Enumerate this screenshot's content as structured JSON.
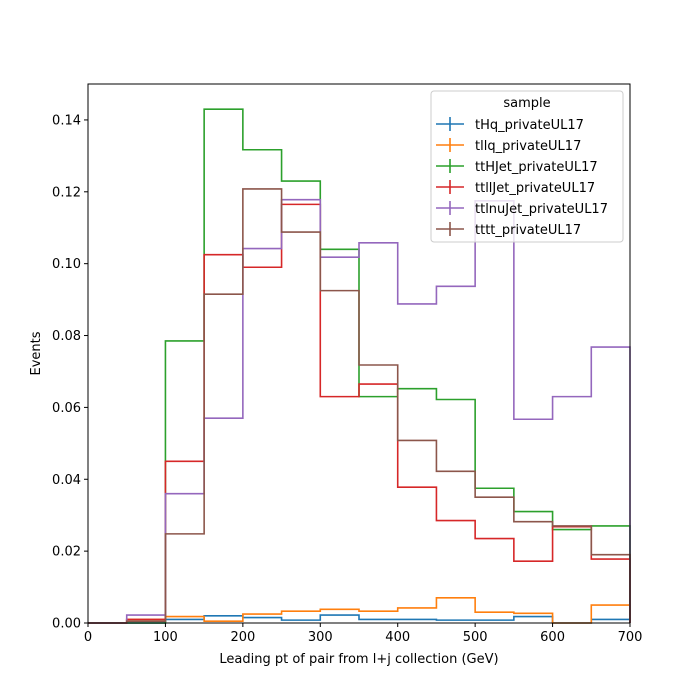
{
  "chart_data": {
    "type": "histogram-step",
    "xlabel": "Leading pt of pair from l+j collection (GeV)",
    "ylabel": "Events",
    "xlim": [
      0,
      700
    ],
    "ylim": [
      0,
      0.15
    ],
    "x_ticks": [
      "0",
      "100",
      "200",
      "300",
      "400",
      "500",
      "600",
      "700"
    ],
    "y_ticks": [
      "0.00",
      "0.02",
      "0.04",
      "0.06",
      "0.08",
      "0.10",
      "0.12",
      "0.14"
    ],
    "bin_edges": [
      0,
      50,
      100,
      150,
      200,
      250,
      300,
      350,
      400,
      450,
      500,
      550,
      600,
      650,
      700
    ],
    "grid": false,
    "legend": {
      "title": "sample",
      "placement": "top-right"
    },
    "series": [
      {
        "name": "tHq_privateUL17",
        "color": "#1f77b4",
        "values": [
          0.0,
          0.0,
          0.001,
          0.002,
          0.0015,
          0.0008,
          0.0022,
          0.001,
          0.001,
          0.0008,
          0.0008,
          0.0018,
          0.0,
          0.001
        ]
      },
      {
        "name": "tllq_privateUL17",
        "color": "#ff7f0e",
        "values": [
          0.0,
          0.001,
          0.0018,
          0.0005,
          0.0025,
          0.0033,
          0.0038,
          0.0033,
          0.0042,
          0.007,
          0.003,
          0.0027,
          0.0,
          0.005
        ]
      },
      {
        "name": "ttHJet_privateUL17",
        "color": "#2ca02c",
        "values": [
          0.0,
          0.0,
          0.0785,
          0.143,
          0.1317,
          0.123,
          0.104,
          0.063,
          0.0652,
          0.0622,
          0.0375,
          0.031,
          0.026,
          0.027
        ]
      },
      {
        "name": "ttllJet_privateUL17",
        "color": "#d62728",
        "values": [
          0.0,
          0.001,
          0.045,
          0.1025,
          0.099,
          0.1165,
          0.063,
          0.0665,
          0.0378,
          0.0285,
          0.0235,
          0.0172,
          0.0268,
          0.0178
        ]
      },
      {
        "name": "ttlnuJet_privateUL17",
        "color": "#9467bd",
        "values": [
          0.0,
          0.0022,
          0.036,
          0.057,
          0.1042,
          0.1178,
          0.1018,
          0.1058,
          0.0888,
          0.0937,
          0.1175,
          0.0567,
          0.063,
          0.0768
        ]
      },
      {
        "name": "tttt_privateUL17",
        "color": "#8c564b",
        "values": [
          0.0,
          0.0005,
          0.0248,
          0.0915,
          0.1208,
          0.1088,
          0.0925,
          0.0718,
          0.0508,
          0.0422,
          0.035,
          0.0282,
          0.027,
          0.019
        ]
      }
    ]
  }
}
